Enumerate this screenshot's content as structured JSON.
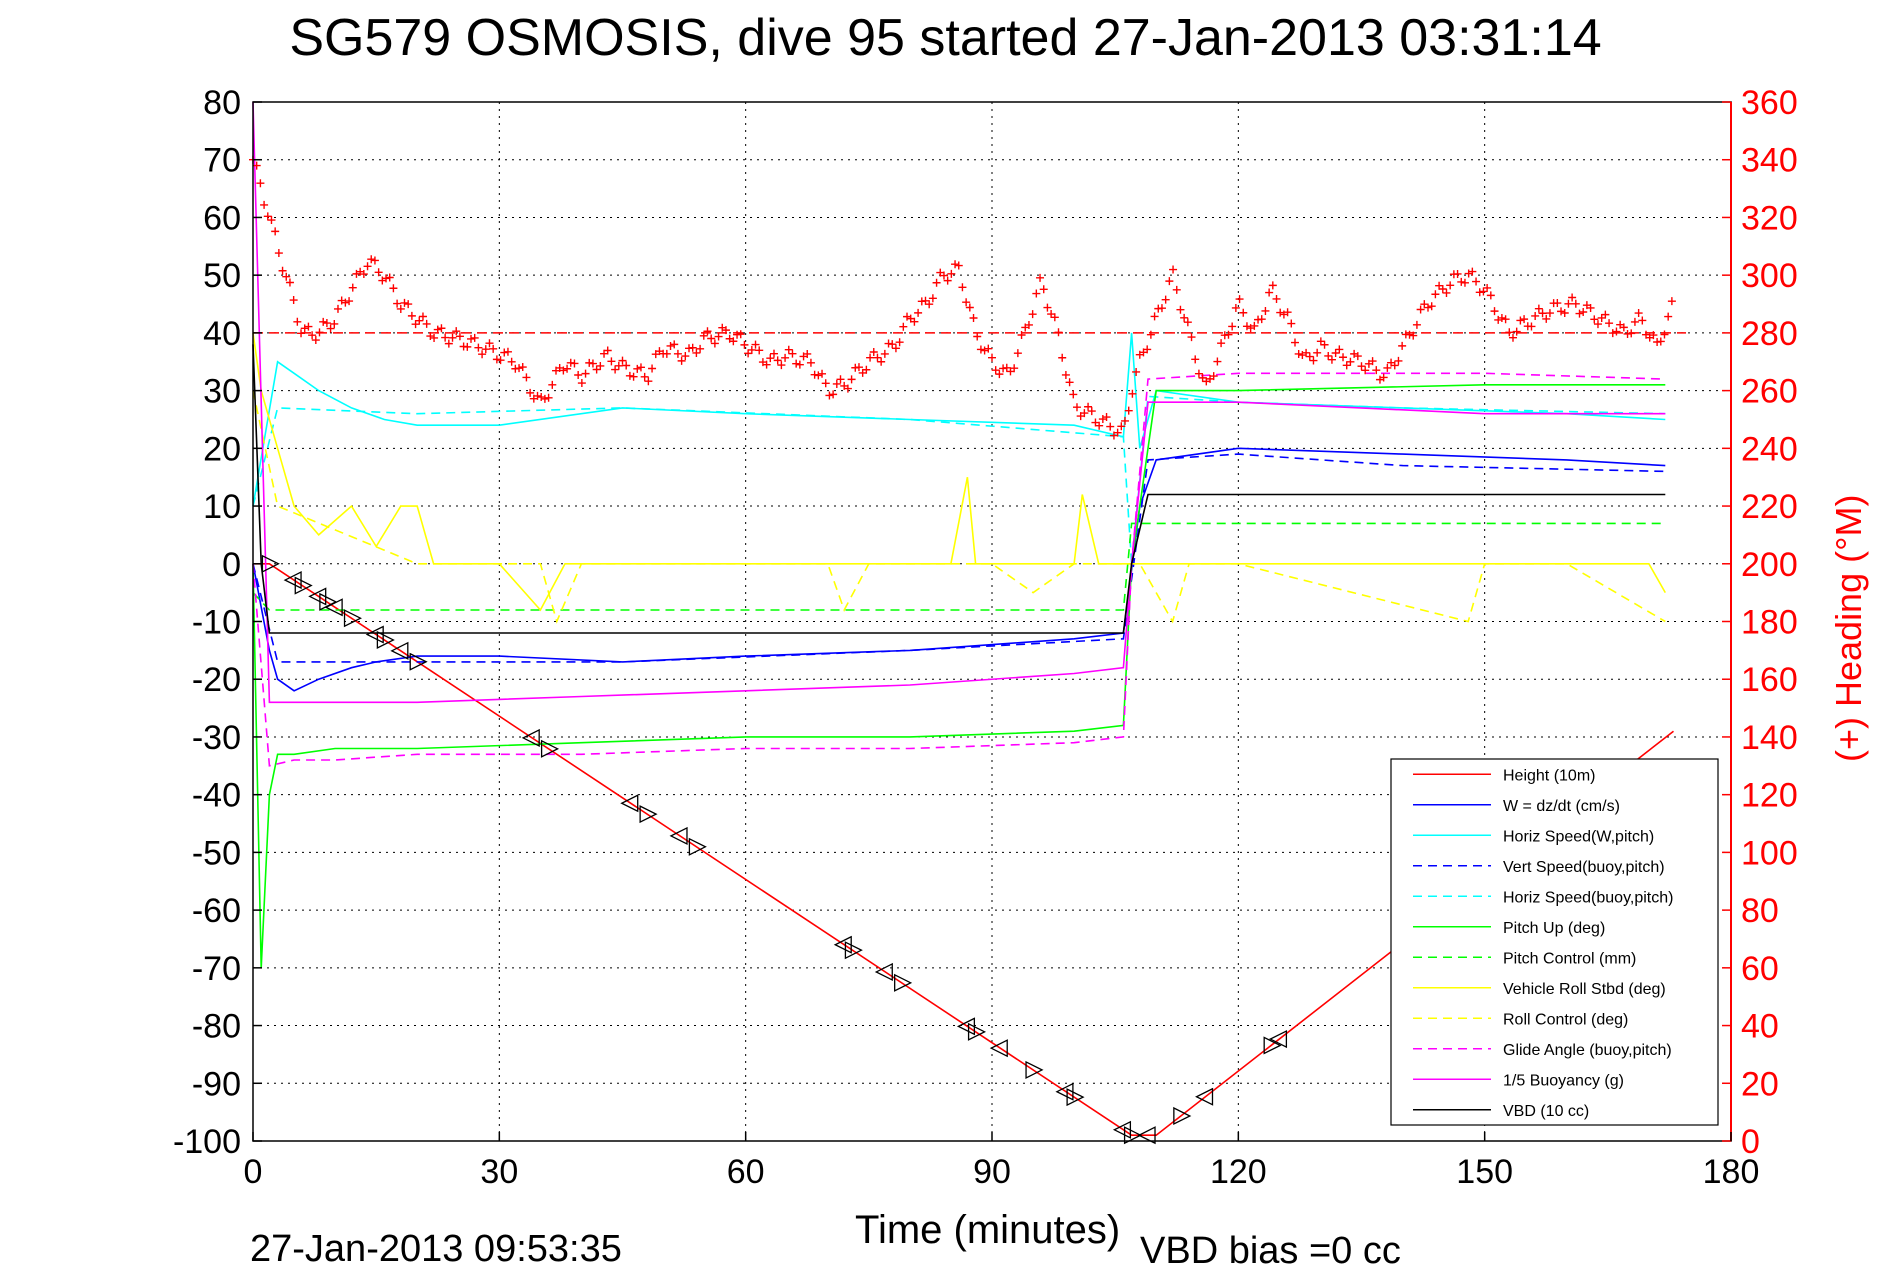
{
  "title": "SG579 OSMOSIS, dive 95 started 27-Jan-2013 03:31:14",
  "footer_left": "27-Jan-2013 09:53:35",
  "footer_right": "VBD bias =0 cc",
  "colors": {
    "height": "#ff0000",
    "w": "#0000ff",
    "horiz": "#00ffff",
    "pitch": "#00ff00",
    "roll": "#ffff00",
    "buoy": "#ff00ff",
    "vbd": "#000000",
    "heading": "#ff0000"
  },
  "chart_data": {
    "type": "line",
    "xlabel": "Time (minutes)",
    "ylabel": "",
    "y2label": "(+) Heading (°M)",
    "xlim": [
      0,
      180
    ],
    "ylim": [
      -100,
      80
    ],
    "y2lim": [
      0,
      360
    ],
    "xticks": [
      0,
      30,
      60,
      90,
      120,
      150,
      180
    ],
    "yticks": [
      80,
      70,
      60,
      50,
      40,
      30,
      20,
      10,
      0,
      -10,
      -20,
      -30,
      -40,
      -50,
      -60,
      -70,
      -80,
      -90,
      -100
    ],
    "y2ticks": [
      360,
      340,
      320,
      300,
      280,
      260,
      240,
      220,
      200,
      180,
      160,
      140,
      120,
      100,
      80,
      60,
      40,
      20,
      0
    ],
    "grid": true,
    "legend_position": "lower-right",
    "heading_reference": 280,
    "series": [
      {
        "name": "Height (10m)",
        "style": "solid",
        "color": "#ff0000",
        "x": [
          0,
          2,
          107,
          110,
          173
        ],
        "y": [
          0,
          0,
          -99,
          -99,
          -29
        ]
      },
      {
        "name": "W = dz/dt (cm/s)",
        "style": "solid",
        "color": "#0000ff",
        "x": [
          0,
          2,
          3,
          5,
          8,
          12,
          15,
          20,
          30,
          45,
          60,
          80,
          100,
          106,
          108,
          110,
          120,
          140,
          160,
          172
        ],
        "y": [
          0,
          -15,
          -20,
          -22,
          -20,
          -18,
          -17,
          -16,
          -16,
          -17,
          -16,
          -15,
          -13,
          -12,
          10,
          18,
          20,
          19,
          18,
          17
        ]
      },
      {
        "name": "Horiz Speed(W,pitch)",
        "style": "solid",
        "color": "#00ffff",
        "x": [
          0,
          3,
          5,
          8,
          12,
          16,
          20,
          30,
          45,
          60,
          80,
          100,
          106,
          107,
          108,
          110,
          120,
          140,
          160,
          172
        ],
        "y": [
          10,
          35,
          33,
          30,
          27,
          25,
          24,
          24,
          27,
          26,
          25,
          24,
          22,
          40,
          20,
          30,
          28,
          27,
          26,
          25
        ]
      },
      {
        "name": "Vert Speed(buoy,pitch)",
        "style": "dashed",
        "color": "#0000ff",
        "x": [
          0,
          3,
          20,
          45,
          80,
          106,
          109,
          120,
          140,
          172
        ],
        "y": [
          0,
          -17,
          -17,
          -17,
          -15,
          -13,
          18,
          19,
          17,
          16
        ]
      },
      {
        "name": "Horiz Speed(buoy,pitch)",
        "style": "dashed",
        "color": "#00ffff",
        "x": [
          0,
          3,
          20,
          45,
          80,
          106,
          107,
          109,
          120,
          140,
          172
        ],
        "y": [
          10,
          27,
          26,
          27,
          25,
          22,
          0,
          29,
          28,
          27,
          26
        ]
      },
      {
        "name": "Pitch Up (deg)",
        "style": "solid",
        "color": "#00ff00",
        "x": [
          0,
          1,
          2,
          3,
          5,
          10,
          20,
          40,
          60,
          80,
          100,
          106,
          107,
          110,
          120,
          150,
          172
        ],
        "y": [
          0,
          -70,
          -40,
          -33,
          -33,
          -32,
          -32,
          -31,
          -30,
          -30,
          -29,
          -28,
          0,
          30,
          30,
          31,
          31
        ]
      },
      {
        "name": "Pitch Control (mm)",
        "style": "dashed",
        "color": "#00ff00",
        "x": [
          0,
          2,
          106,
          107,
          172
        ],
        "y": [
          -5,
          -8,
          -8,
          7,
          7
        ]
      },
      {
        "name": "Vehicle Roll Stbd (deg)",
        "style": "solid",
        "color": "#ffff00",
        "x": [
          0,
          1,
          3,
          5,
          8,
          12,
          15,
          18,
          20,
          22,
          30,
          35,
          38,
          50,
          60,
          75,
          85,
          87,
          88,
          90,
          100,
          101,
          103,
          106,
          108,
          110,
          115,
          125,
          145,
          150,
          160,
          165,
          170,
          172
        ],
        "y": [
          40,
          30,
          20,
          10,
          5,
          10,
          3,
          10,
          10,
          0,
          0,
          -8,
          0,
          0,
          0,
          0,
          0,
          15,
          0,
          0,
          0,
          12,
          0,
          0,
          0,
          0,
          0,
          0,
          0,
          0,
          0,
          0,
          0,
          -5
        ]
      },
      {
        "name": "Roll Control (deg)",
        "style": "dashed",
        "color": "#ffff00",
        "x": [
          0,
          3,
          20,
          35,
          37,
          40,
          70,
          72,
          75,
          90,
          95,
          100,
          108,
          112,
          114,
          120,
          148,
          150,
          160,
          172
        ],
        "y": [
          30,
          10,
          0,
          0,
          -10,
          0,
          0,
          -8,
          0,
          0,
          -5,
          0,
          0,
          -10,
          0,
          0,
          -10,
          0,
          0,
          -10
        ]
      },
      {
        "name": "Glide Angle (buoy,pitch)",
        "style": "dashed",
        "color": "#ff00ff",
        "x": [
          0,
          2,
          5,
          10,
          20,
          40,
          60,
          80,
          100,
          106,
          107,
          109,
          120,
          150,
          172
        ],
        "y": [
          0,
          -35,
          -34,
          -34,
          -33,
          -33,
          -32,
          -32,
          -31,
          -30,
          0,
          32,
          33,
          33,
          32
        ]
      },
      {
        "name": "1/5 Buoyancy (g)",
        "style": "solid",
        "color": "#ff00ff",
        "x": [
          0,
          2,
          20,
          40,
          60,
          80,
          100,
          106,
          107,
          109,
          120,
          150,
          172
        ],
        "y": [
          80,
          -24,
          -24,
          -23,
          -22,
          -21,
          -19,
          -18,
          0,
          28,
          28,
          26,
          26
        ]
      },
      {
        "name": "VBD (10 cc)",
        "style": "solid",
        "color": "#000000",
        "x": [
          0,
          1,
          2,
          106,
          107,
          109,
          120,
          172
        ],
        "y": [
          38,
          0,
          -12,
          -12,
          0,
          12,
          12,
          12
        ]
      }
    ],
    "heading": {
      "name": "(+) Heading",
      "color": "#ff0000",
      "x": [
        0,
        1,
        2,
        3,
        4,
        5,
        6,
        8,
        10,
        12,
        14,
        16,
        18,
        20,
        22,
        25,
        28,
        32,
        35,
        38,
        40,
        43,
        45,
        48,
        50,
        53,
        55,
        58,
        60,
        63,
        65,
        68,
        70,
        72,
        75,
        78,
        80,
        82,
        84,
        86,
        88,
        90,
        92,
        94,
        96,
        98,
        100,
        103,
        106,
        107,
        108,
        110,
        112,
        114,
        116,
        118,
        120,
        122,
        124,
        126,
        128,
        130,
        132,
        135,
        138,
        140,
        143,
        146,
        148,
        150,
        153,
        156,
        158,
        161,
        164,
        167,
        169,
        171,
        173
      ],
      "y": [
        340,
        330,
        320,
        310,
        300,
        290,
        280,
        280,
        285,
        295,
        305,
        300,
        290,
        285,
        280,
        278,
        275,
        270,
        255,
        270,
        265,
        272,
        268,
        265,
        275,
        272,
        278,
        280,
        276,
        270,
        272,
        270,
        260,
        262,
        270,
        275,
        285,
        290,
        300,
        302,
        280,
        270,
        265,
        280,
        298,
        280,
        255,
        250,
        245,
        260,
        270,
        285,
        300,
        280,
        260,
        275,
        290,
        280,
        295,
        285,
        270,
        275,
        272,
        270,
        265,
        275,
        290,
        298,
        300,
        295,
        280,
        285,
        288,
        290,
        285,
        280,
        285,
        275,
        290
      ]
    }
  }
}
